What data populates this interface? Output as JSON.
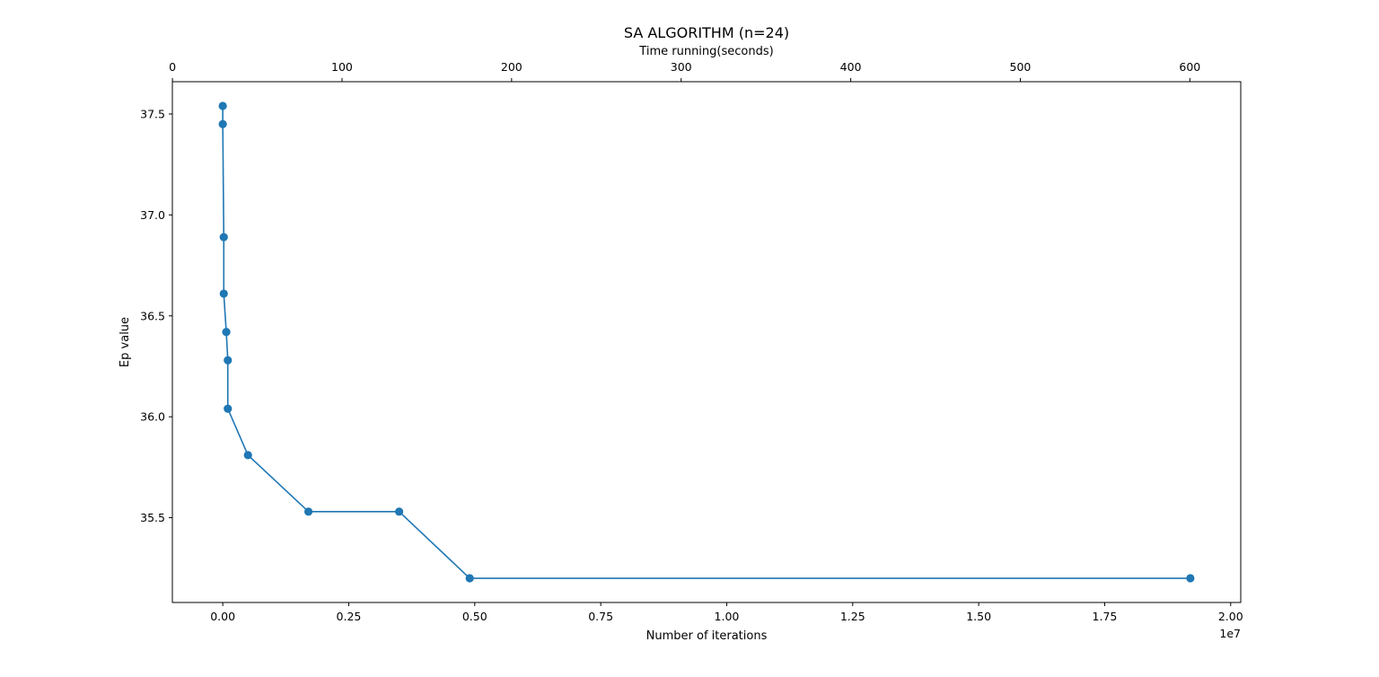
{
  "chart_data": {
    "type": "line",
    "title": "SA ALGORITHM (n=24)",
    "xlabel": "Number of iterations",
    "x2label": "Time running(seconds)",
    "ylabel": "Ep value",
    "x_offset_label": "1e7",
    "xlim": [
      -0.1,
      2.02
    ],
    "x2lim": [
      -0.05,
      630
    ],
    "ylim": [
      35.08,
      37.66
    ],
    "x_ticks": [
      0.0,
      0.25,
      0.5,
      0.75,
      1.0,
      1.25,
      1.5,
      1.75,
      2.0
    ],
    "x_tick_labels": [
      "0.00",
      "0.25",
      "0.50",
      "0.75",
      "1.00",
      "1.25",
      "1.50",
      "1.75",
      "2.00"
    ],
    "x2_ticks": [
      0,
      100,
      200,
      300,
      400,
      500,
      600
    ],
    "x2_tick_labels": [
      "0",
      "100",
      "200",
      "300",
      "400",
      "500",
      "600"
    ],
    "y_ticks": [
      35.5,
      36.0,
      36.5,
      37.0,
      37.5
    ],
    "y_tick_labels": [
      "35.5",
      "36.0",
      "36.5",
      "37.0",
      "37.5"
    ],
    "grid": false,
    "series": [
      {
        "color": "#1f77b4",
        "marker": "circle",
        "x": [
          0.0,
          0.0,
          0.002,
          0.002,
          0.007,
          0.01,
          0.01,
          0.05,
          0.17,
          0.35,
          0.49,
          1.92
        ],
        "y": [
          37.54,
          37.45,
          36.89,
          36.61,
          36.42,
          36.28,
          36.04,
          35.81,
          35.53,
          35.53,
          35.2,
          35.2
        ]
      }
    ]
  }
}
